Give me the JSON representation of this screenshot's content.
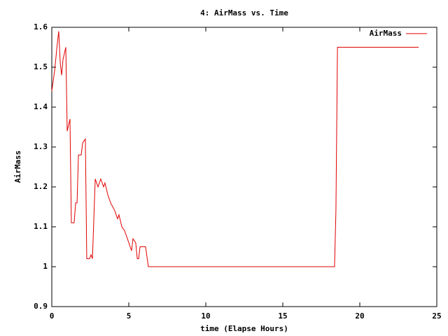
{
  "chart_data": {
    "type": "line",
    "title": "4: AirMass vs. Time",
    "x_label": "time (Elapse Hours)",
    "y_label": "AirMass",
    "xlim": [
      0,
      25
    ],
    "xticks": [
      0,
      5,
      10,
      15,
      20,
      25
    ],
    "ylim": [
      0.9,
      1.6
    ],
    "yticks": [
      0.9,
      1,
      1.1,
      1.2,
      1.3,
      1.4,
      1.5,
      1.6
    ],
    "legend": "top-right",
    "series": [
      {
        "name": "AirMass",
        "color": "#e00000",
        "x": [
          0,
          0.18,
          0.36,
          0.45,
          0.55,
          0.64,
          0.73,
          0.91,
          1.0,
          1.18,
          1.27,
          1.45,
          1.55,
          1.64,
          1.73,
          1.91,
          2.0,
          2.18,
          2.27,
          2.45,
          2.55,
          2.64,
          2.82,
          3.0,
          3.18,
          3.36,
          3.45,
          3.64,
          3.82,
          4.09,
          4.27,
          4.36,
          4.55,
          4.73,
          4.91,
          5.09,
          5.18,
          5.27,
          5.45,
          5.55,
          5.64,
          5.73,
          6.09,
          6.27,
          18.36,
          18.45,
          18.55,
          23.82
        ],
        "values": [
          1.44,
          1.49,
          1.56,
          1.59,
          1.51,
          1.48,
          1.52,
          1.55,
          1.34,
          1.37,
          1.11,
          1.11,
          1.16,
          1.16,
          1.28,
          1.28,
          1.31,
          1.32,
          1.02,
          1.02,
          1.03,
          1.02,
          1.22,
          1.2,
          1.22,
          1.2,
          1.21,
          1.18,
          1.16,
          1.14,
          1.12,
          1.13,
          1.1,
          1.09,
          1.07,
          1.05,
          1.04,
          1.07,
          1.06,
          1.02,
          1.02,
          1.05,
          1.05,
          1.0,
          1.0,
          1.14,
          1.55,
          1.55
        ]
      }
    ]
  }
}
